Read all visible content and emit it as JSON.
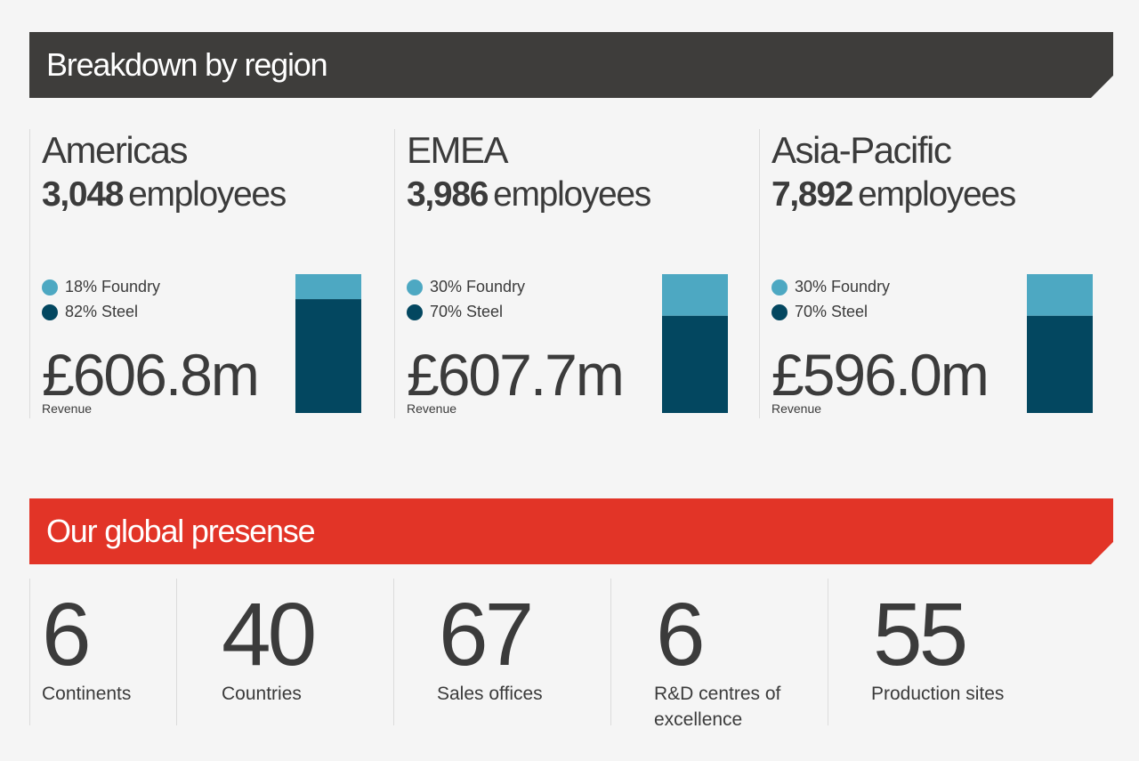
{
  "sections": {
    "breakdown_title": "Breakdown by region",
    "presence_title": "Our global presense"
  },
  "colors": {
    "foundry": "#4da8c2",
    "steel": "#034760",
    "dark_banner": "#3e3d3b",
    "red_banner": "#e23427"
  },
  "chart_data": [
    {
      "type": "bar",
      "title": "Americas",
      "employees": "3,048",
      "employees_unit": "employees",
      "categories": [
        "Americas"
      ],
      "series": [
        {
          "name": "Foundry",
          "label": "18% Foundry",
          "values": [
            18
          ]
        },
        {
          "name": "Steel",
          "label": "82% Steel",
          "values": [
            82
          ]
        }
      ],
      "stacked": true,
      "ylim": [
        0,
        100
      ],
      "revenue": "£606.8m",
      "revenue_label": "Revenue"
    },
    {
      "type": "bar",
      "title": "EMEA",
      "employees": "3,986",
      "employees_unit": "employees",
      "categories": [
        "EMEA"
      ],
      "series": [
        {
          "name": "Foundry",
          "label": "30% Foundry",
          "values": [
            30
          ]
        },
        {
          "name": "Steel",
          "label": "70% Steel",
          "values": [
            70
          ]
        }
      ],
      "stacked": true,
      "ylim": [
        0,
        100
      ],
      "revenue": "£607.7m",
      "revenue_label": "Revenue"
    },
    {
      "type": "bar",
      "title": "Asia-Pacific",
      "employees": "7,892",
      "employees_unit": "employees",
      "categories": [
        "Asia-Pacific"
      ],
      "series": [
        {
          "name": "Foundry",
          "label": "30% Foundry",
          "values": [
            30
          ]
        },
        {
          "name": "Steel",
          "label": "70% Steel",
          "values": [
            70
          ]
        }
      ],
      "stacked": true,
      "ylim": [
        0,
        100
      ],
      "revenue": "£596.0m",
      "revenue_label": "Revenue"
    }
  ],
  "stats": [
    {
      "value": "6",
      "label": "Continents"
    },
    {
      "value": "40",
      "label": "Countries"
    },
    {
      "value": "67",
      "label": "Sales offices"
    },
    {
      "value": "6",
      "label": "R&D centres of excellence"
    },
    {
      "value": "55",
      "label": "Production sites"
    }
  ]
}
